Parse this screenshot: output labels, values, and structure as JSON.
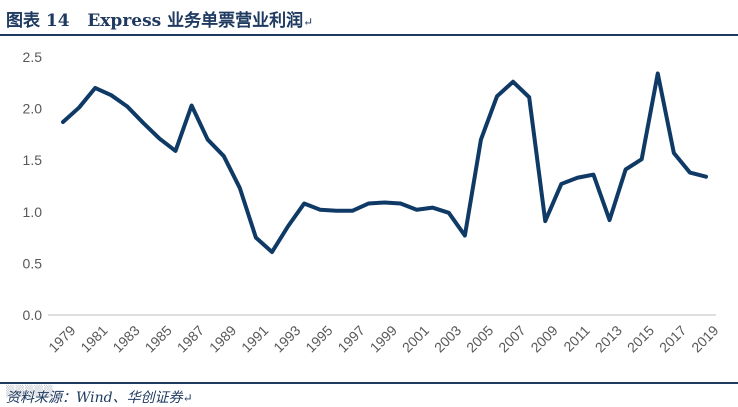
{
  "header": {
    "figure_label": "图表 14",
    "title": "Express 业务单票营业利润",
    "para_mark": "↵"
  },
  "source": {
    "text": "资料来源：Wind、华创证券",
    "para_mark": "↵"
  },
  "colors": {
    "line": "#0f3a66",
    "header": "#1f3a60",
    "axis_text": "#595959",
    "axis_line": "#bfbfbf"
  },
  "chart_data": {
    "type": "line",
    "title": "",
    "xlabel": "",
    "ylabel": "",
    "ylim": [
      0,
      2.5
    ],
    "yticks": [
      "0.0",
      "0.5",
      "1.0",
      "1.5",
      "2.0",
      "2.5"
    ],
    "x": [
      1979,
      1980,
      1981,
      1982,
      1983,
      1984,
      1985,
      1986,
      1987,
      1988,
      1989,
      1990,
      1991,
      1992,
      1993,
      1994,
      1995,
      1996,
      1997,
      1998,
      1999,
      2000,
      2001,
      2002,
      2003,
      2004,
      2005,
      2006,
      2007,
      2008,
      2009,
      2010,
      2011,
      2012,
      2013,
      2014,
      2015,
      2016,
      2017,
      2018,
      2019
    ],
    "xtick_labels": [
      "1979",
      "1981",
      "1983",
      "1985",
      "1987",
      "1989",
      "1991",
      "1993",
      "1995",
      "1997",
      "1999",
      "2001",
      "2003",
      "2005",
      "2007",
      "2009",
      "2011",
      "2013",
      "2015",
      "2017",
      "2019"
    ],
    "series": [
      {
        "values": [
          1.87,
          2.01,
          2.2,
          2.13,
          2.02,
          1.86,
          1.71,
          1.59,
          2.03,
          1.7,
          1.54,
          1.23,
          0.75,
          0.61,
          0.86,
          1.08,
          1.02,
          1.01,
          1.01,
          1.08,
          1.09,
          1.08,
          1.02,
          1.04,
          0.99,
          0.77,
          1.7,
          2.12,
          2.26,
          2.11,
          0.91,
          1.27,
          1.33,
          1.36,
          0.92,
          1.41,
          1.51,
          2.34,
          1.57,
          1.38,
          1.34
        ]
      }
    ],
    "grid": false,
    "legend": "none"
  }
}
